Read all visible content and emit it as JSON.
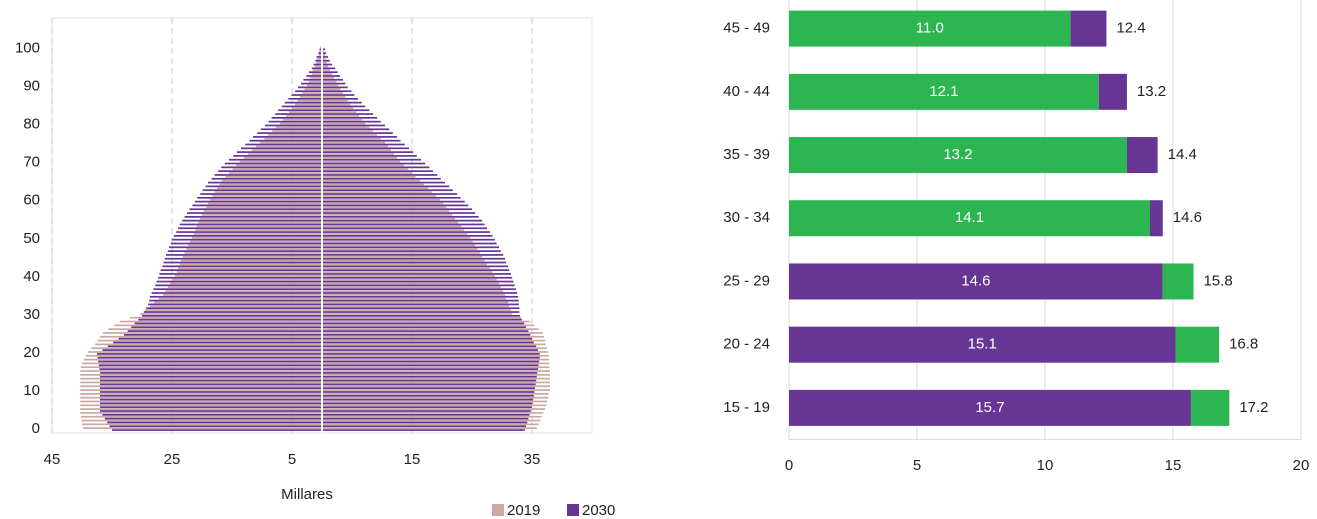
{
  "chart_data": [
    {
      "type": "pyramid",
      "x_label": "Millares",
      "xlim": [
        -45,
        45
      ],
      "xticks": [
        {
          "value": -45,
          "label": "45"
        },
        {
          "value": -25,
          "label": "25"
        },
        {
          "value": -5,
          "label": "5"
        },
        {
          "value": 15,
          "label": "15"
        },
        {
          "value": 35,
          "label": "35"
        }
      ],
      "ylim": [
        -1,
        108
      ],
      "yticks": [
        0,
        10,
        20,
        30,
        40,
        50,
        60,
        70,
        80,
        90,
        100
      ],
      "grid": true,
      "legend": "bottom-right",
      "y": [
        0,
        1,
        2,
        3,
        4,
        5,
        6,
        7,
        8,
        9,
        10,
        11,
        12,
        13,
        14,
        15,
        16,
        17,
        18,
        19,
        20,
        21,
        22,
        23,
        24,
        25,
        26,
        27,
        28,
        29,
        30,
        31,
        32,
        33,
        34,
        35,
        36,
        37,
        38,
        39,
        40,
        41,
        42,
        43,
        44,
        45,
        46,
        47,
        48,
        49,
        50,
        51,
        52,
        53,
        54,
        55,
        56,
        57,
        58,
        59,
        60,
        61,
        62,
        63,
        64,
        65,
        66,
        67,
        68,
        69,
        70,
        71,
        72,
        73,
        74,
        75,
        76,
        77,
        78,
        79,
        80,
        81,
        82,
        83,
        84,
        85,
        86,
        87,
        88,
        89,
        90,
        91,
        92,
        93,
        94,
        95,
        96,
        97,
        98,
        99,
        100
      ],
      "series": [
        {
          "name": "2019",
          "color": "#c9a8a6",
          "values_left": [
            -39.8,
            -40,
            -40.1,
            -40.2,
            -40.3,
            -40.3,
            -40.3,
            -40.3,
            -40.3,
            -40.3,
            -40.3,
            -40.3,
            -40.3,
            -40.3,
            -40.3,
            -40.3,
            -40.2,
            -40,
            -39.7,
            -39.4,
            -39,
            -38.4,
            -37.8,
            -37.4,
            -37,
            -36.5,
            -35.6,
            -34.6,
            -33.7,
            -32,
            -30.3,
            -29.5,
            -28.7,
            -28,
            -27.2,
            -26.5,
            -26.1,
            -25.7,
            -25.3,
            -24.9,
            -24.5,
            -24.2,
            -24,
            -23.7,
            -23.5,
            -23.2,
            -22.9,
            -22.6,
            -22.3,
            -22,
            -21.7,
            -21.4,
            -21.1,
            -20.9,
            -20.6,
            -20.3,
            -20,
            -19.7,
            -19.3,
            -19,
            -18.7,
            -18.3,
            -17.9,
            -17.5,
            -17.1,
            -16.7,
            -16.1,
            -15.5,
            -14.9,
            -14.3,
            -13.7,
            -13,
            -12.3,
            -11.7,
            -11,
            -10.3,
            -9.6,
            -9,
            -8.3,
            -7.7,
            -7,
            -6.5,
            -6,
            -5.5,
            -5,
            -4.5,
            -4.1,
            -3.7,
            -3.3,
            -2.9,
            -2.5,
            -2.2,
            -2,
            -1.7,
            -1.5,
            -1.2,
            -1,
            -0.8,
            -0.6,
            -0.5,
            -0.3
          ],
          "values_right": [
            35.8,
            36.1,
            36.4,
            36.6,
            36.9,
            37.2,
            37.4,
            37.5,
            37.7,
            37.8,
            38,
            38,
            38,
            38,
            38,
            38,
            37.9,
            37.9,
            37.8,
            37.8,
            37.7,
            37.5,
            37.3,
            37.2,
            37,
            36.8,
            36.1,
            35.4,
            34.7,
            33.2,
            31.7,
            31.5,
            31.2,
            31,
            30.7,
            30.5,
            30.2,
            29.8,
            29.5,
            29.1,
            28.8,
            28.4,
            28,
            27.5,
            27.1,
            26.7,
            26.3,
            25.9,
            25.5,
            25.1,
            24.7,
            24.2,
            23.7,
            23.2,
            22.7,
            22.2,
            21.7,
            21.2,
            20.7,
            20.2,
            19.7,
            19,
            18.3,
            17.7,
            17,
            16.3,
            15.6,
            15,
            14.3,
            13.7,
            13,
            12.5,
            12,
            11.5,
            11,
            10.5,
            9.8,
            9.2,
            8.5,
            7.9,
            7.2,
            6.7,
            6.2,
            5.7,
            5.2,
            4.7,
            4.3,
            3.9,
            3.5,
            3.1,
            2.7,
            2.4,
            2,
            1.7,
            1.3,
            1,
            0.8,
            0.6,
            0.5,
            0.3,
            0.2
          ]
        },
        {
          "name": "2030",
          "color": "#673594",
          "values_left": [
            -35,
            -35.4,
            -35.8,
            -36.2,
            -36.6,
            -37,
            -37,
            -37,
            -37,
            -37,
            -37,
            -37,
            -37,
            -37,
            -37,
            -37,
            -37.1,
            -37.2,
            -37.3,
            -37.4,
            -37.5,
            -36.6,
            -35.7,
            -34.8,
            -33.9,
            -33,
            -32.4,
            -31.8,
            -31.2,
            -30.6,
            -30,
            -29.7,
            -29.3,
            -29,
            -28.8,
            -28.7,
            -28.4,
            -28.1,
            -27.8,
            -27.6,
            -27.3,
            -27.1,
            -26.9,
            -26.6,
            -26.4,
            -26.2,
            -26,
            -25.7,
            -25.5,
            -25.2,
            -25,
            -24.7,
            -24.3,
            -24,
            -23.7,
            -23.3,
            -22.9,
            -22.5,
            -22.1,
            -21.6,
            -21.2,
            -20.8,
            -20.3,
            -19.9,
            -19.4,
            -19,
            -18.4,
            -17.9,
            -17.3,
            -16.8,
            -16.2,
            -15.5,
            -14.8,
            -14.2,
            -13.5,
            -12.8,
            -12.1,
            -11.5,
            -10.8,
            -10.2,
            -9.5,
            -8.9,
            -8.4,
            -7.8,
            -7.3,
            -6.7,
            -6.2,
            -5.6,
            -5.1,
            -4.5,
            -4,
            -3.5,
            -3.1,
            -2.6,
            -2.2,
            -1.7,
            -1.4,
            -1.1,
            -0.9,
            -0.6,
            -0.4
          ],
          "values_right": [
            33.8,
            34,
            34.2,
            34.4,
            34.6,
            34.8,
            35,
            35.1,
            35.2,
            35.3,
            35.4,
            35.5,
            35.6,
            35.7,
            35.8,
            35.9,
            36,
            36.1,
            36.2,
            36.3,
            36.3,
            36,
            35.7,
            35.3,
            35,
            34.7,
            34.4,
            34,
            33.7,
            33.3,
            33,
            32.9,
            32.9,
            32.8,
            32.8,
            32.7,
            32.5,
            32.3,
            32.1,
            31.9,
            31.7,
            31.5,
            31.2,
            31,
            30.7,
            30.5,
            30.2,
            29.8,
            29.5,
            29.1,
            28.8,
            28.4,
            28,
            27.5,
            27.1,
            26.7,
            26.1,
            25.5,
            25,
            24.4,
            23.8,
            23.1,
            22.5,
            21.8,
            21.2,
            20.5,
            19.8,
            19.2,
            18.5,
            17.9,
            17.2,
            16.5,
            15.8,
            15.2,
            14.5,
            13.8,
            13.1,
            12.5,
            11.8,
            11.2,
            10.5,
            9.8,
            9.2,
            8.5,
            7.9,
            7.2,
            6.6,
            6,
            5.4,
            4.9,
            4.3,
            3.9,
            3.5,
            3,
            2.6,
            2.2,
            1.7,
            1.3,
            1,
            0.7,
            0.5
          ]
        }
      ]
    },
    {
      "type": "stacked",
      "categories": [
        "15 - 19",
        "20 - 24",
        "25 - 29",
        "30 - 34",
        "35 - 39",
        "40 - 44",
        "45 - 49"
      ],
      "xlim": [
        0,
        20
      ],
      "xticks": [
        0,
        5,
        10,
        15,
        20
      ],
      "grid": true,
      "series": [
        {
          "values": [
            15.7,
            15.1,
            14.6,
            14.1,
            13.2,
            12.1,
            11
          ],
          "value_labels": [
            "15.7",
            "15.1",
            "14.6",
            "14.1",
            "13.2",
            "12.1",
            "11.0"
          ],
          "colors": [
            "#673594",
            "#673594",
            "#673594",
            "#2db552",
            "#2db552",
            "#2db552",
            "#2db552"
          ]
        },
        {
          "values": [
            1.5,
            1.7,
            1.2,
            0.5,
            1.2,
            1.1,
            1.4
          ],
          "colors": [
            "#2db552",
            "#2db552",
            "#2db552",
            "#673594",
            "#673594",
            "#673594",
            "#673594"
          ]
        }
      ],
      "totals": [
        17.2,
        16.8,
        15.8,
        14.6,
        14.4,
        13.2,
        12.4
      ]
    }
  ]
}
